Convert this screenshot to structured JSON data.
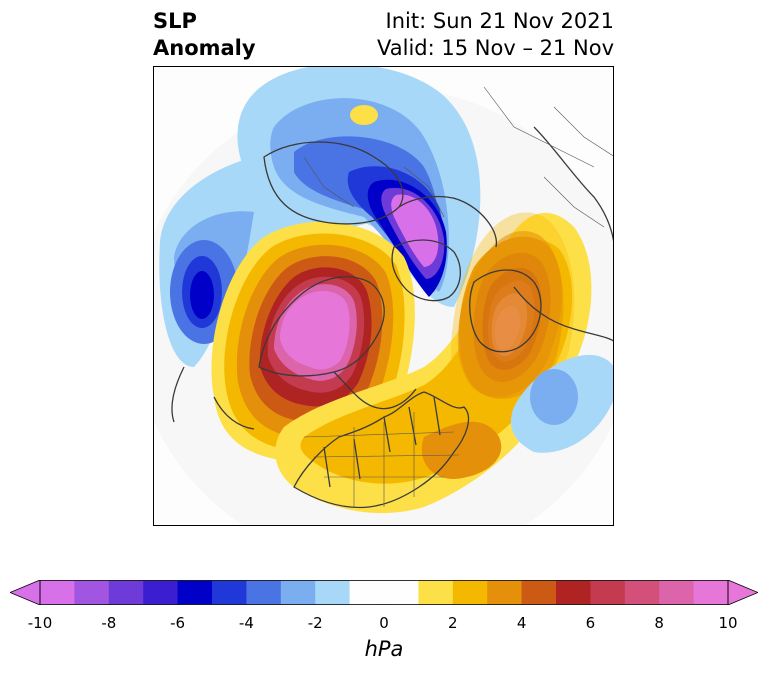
{
  "header": {
    "variable": "SLP",
    "kind": "Anomaly",
    "init_text": "Init: Sun 21 Nov 2021",
    "valid_text": "Valid: 15 Nov – 21 Nov"
  },
  "colorbar": {
    "unit": "hPa",
    "ticks": [
      "-10",
      "-8",
      "-6",
      "-4",
      "-2",
      "0",
      "2",
      "4",
      "6",
      "8",
      "10"
    ],
    "levels": [
      -10,
      -9,
      -8,
      -7,
      -6,
      -5,
      -4,
      -3,
      -2,
      -1,
      1,
      2,
      3,
      4,
      5,
      6,
      7,
      8,
      9,
      10
    ],
    "colors": {
      "under": "#d870ea",
      "bins": [
        "#d870ea",
        "#a155e0",
        "#6f3bd8",
        "#3b1ed0",
        "#0000c8",
        "#2038d8",
        "#4a73e4",
        "#7aaef0",
        "#a8d8f8",
        "#fefefe",
        "#fde047",
        "#f5b800",
        "#e4900a",
        "#cc5a14",
        "#b02323",
        "#c43a4e",
        "#d2507a",
        "#dc64aa",
        "#e676d8"
      ],
      "over": "#e676d8"
    },
    "extend": "both"
  }
}
